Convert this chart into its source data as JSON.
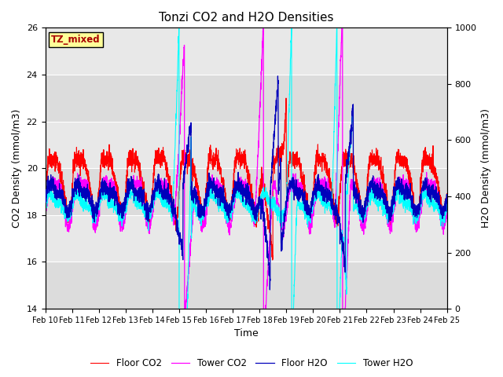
{
  "title": "Tonzi CO2 and H2O Densities",
  "xlabel": "Time",
  "ylabel_left": "CO2 Density (mmol/m3)",
  "ylabel_right": "H2O Density (mmol/m3)",
  "ylim_left": [
    14,
    26
  ],
  "ylim_right": [
    0,
    1000
  ],
  "yticks_left": [
    14,
    16,
    18,
    20,
    22,
    24,
    26
  ],
  "yticks_right": [
    0,
    200,
    400,
    600,
    800,
    1000
  ],
  "xtick_labels": [
    "Feb 10",
    "Feb 11",
    "Feb 12",
    "Feb 13",
    "Feb 14",
    "Feb 15",
    "Feb 16",
    "Feb 17",
    "Feb 18",
    "Feb 19",
    "Feb 20",
    "Feb 21",
    "Feb 22",
    "Feb 23",
    "Feb 24",
    "Feb 25"
  ],
  "colors": {
    "floor_co2": "#FF0000",
    "tower_co2": "#FF00FF",
    "floor_h2o": "#0000BB",
    "tower_h2o": "#00FFFF"
  },
  "legend_labels": [
    "Floor CO2",
    "Tower CO2",
    "Floor H2O",
    "Tower H2O"
  ],
  "textbox_text": "TZ_mixed",
  "textbox_facecolor": "#FFFF99",
  "textbox_edgecolor": "#000000",
  "textbox_textcolor": "#AA0000",
  "band_colors": [
    "#DCDCDC",
    "#E8E8E8"
  ],
  "grid_color": "#FFFFFF",
  "title_fontsize": 11,
  "axis_fontsize": 9,
  "tick_fontsize": 8,
  "n_points": 3000,
  "figsize": [
    6.4,
    4.8
  ],
  "dpi": 100
}
